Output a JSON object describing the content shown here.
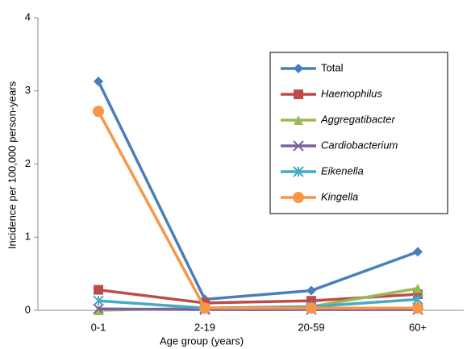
{
  "chart_data": {
    "type": "line",
    "x_label": "Age group (years)",
    "y_label": "Incidence per 100,000 person-years",
    "categories": [
      "0-1",
      "2-19",
      "20-59",
      "60+"
    ],
    "series": [
      {
        "name": "Total",
        "color": "#4a7ebb",
        "marker": "diamond",
        "italic": false,
        "values": [
          3.13,
          0.15,
          0.27,
          0.8
        ]
      },
      {
        "name": "Haemophilus",
        "color": "#be4b48",
        "marker": "square",
        "italic": true,
        "values": [
          0.28,
          0.1,
          0.13,
          0.22
        ]
      },
      {
        "name": "Aggregatibacter",
        "color": "#98b954",
        "marker": "triangle",
        "italic": true,
        "values": [
          0,
          0.03,
          0.05,
          0.3
        ]
      },
      {
        "name": "Cardiobacterium",
        "color": "#7d60a0",
        "marker": "x",
        "italic": true,
        "values": [
          0.02,
          0.01,
          0.01,
          0.01
        ]
      },
      {
        "name": "Eikenella",
        "color": "#46aac5",
        "marker": "star",
        "italic": true,
        "values": [
          0.13,
          0.03,
          0.05,
          0.15
        ]
      },
      {
        "name": "Kingella",
        "color": "#f79646",
        "marker": "circle",
        "italic": true,
        "values": [
          2.72,
          0.03,
          0.03,
          0.03
        ]
      }
    ],
    "ylim": [
      0,
      4
    ],
    "yticks": [
      0,
      1,
      2,
      3,
      4
    ],
    "grid": false,
    "legend": "right"
  }
}
